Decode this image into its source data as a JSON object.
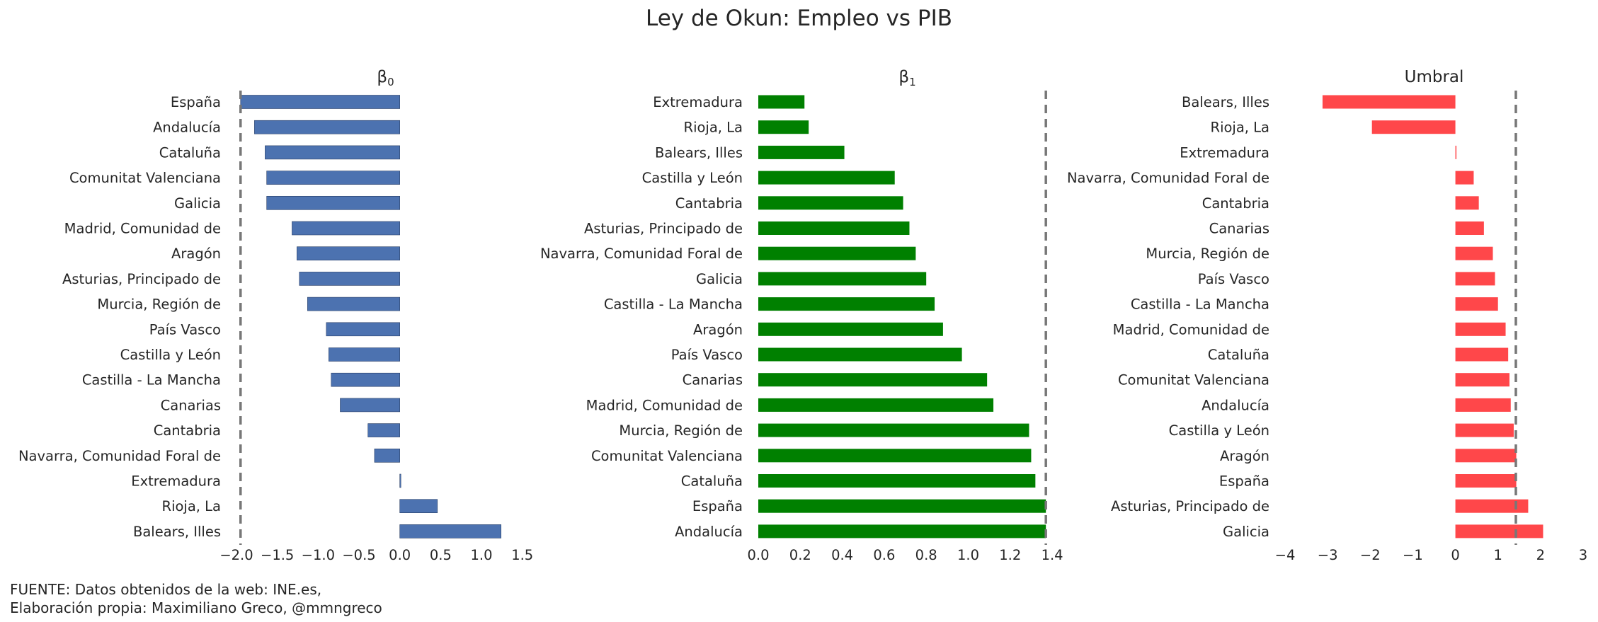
{
  "title": "Ley de Okun: Empleo vs PIB",
  "footer": {
    "line1": "FUENTE: Datos obtenidos de la web: INE.es,",
    "line2": "Elaboración propia: Maximiliano Greco, @mmngreco"
  },
  "chart_data": [
    {
      "type": "bar",
      "orientation": "horizontal",
      "title": "β0",
      "title_main": "β",
      "title_sub": "0",
      "color": "#4C72B0",
      "xlim": [
        -2.0,
        1.65
      ],
      "xticks": [
        -2.0,
        -1.5,
        -1.0,
        -0.5,
        0.0,
        0.5,
        1.0,
        1.5
      ],
      "xtick_labels": [
        "−2.0",
        "−1.5",
        "−1.0",
        "−0.5",
        "0.0",
        "0.5",
        "1.0",
        "1.5"
      ],
      "reference_line": -1.95,
      "categories": [
        "España",
        "Andalucía",
        "Cataluña",
        "Comunitat Valenciana",
        "Galicia",
        "Madrid, Comunidad de",
        "Aragón",
        "Asturias, Principado de",
        "Murcia, Región de",
        "País Vasco",
        "Castilla y León",
        "Castilla - La Mancha",
        "Canarias",
        "Cantabria",
        "Navarra, Comunidad Foral de",
        "Extremadura",
        "Rioja, La",
        "Balears, Illes"
      ],
      "values": [
        -1.95,
        -1.78,
        -1.65,
        -1.63,
        -1.63,
        -1.32,
        -1.26,
        -1.23,
        -1.13,
        -0.9,
        -0.87,
        -0.84,
        -0.73,
        -0.39,
        -0.31,
        0.0,
        0.46,
        1.24
      ]
    },
    {
      "type": "bar",
      "orientation": "horizontal",
      "title": "β1",
      "title_main": "β",
      "title_sub": "1",
      "color": "#008000",
      "xlim": [
        0.0,
        1.42
      ],
      "xticks": [
        0.0,
        0.2,
        0.4,
        0.6,
        0.8,
        1.0,
        1.2,
        1.4
      ],
      "xtick_labels": [
        "0.0",
        "0.2",
        "0.4",
        "0.6",
        "0.8",
        "1.0",
        "1.2",
        "1.4"
      ],
      "reference_line": 1.37,
      "categories": [
        "Extremadura",
        "Rioja, La",
        "Balears, Illes",
        "Castilla y León",
        "Cantabria",
        "Asturias, Principado de",
        "Navarra, Comunidad Foral de",
        "Galicia",
        "Castilla - La Mancha",
        "Aragón",
        "País Vasco",
        "Canarias",
        "Madrid, Comunidad de",
        "Murcia, Región de",
        "Comunitat Valenciana",
        "Cataluña",
        "España",
        "Andalucía"
      ],
      "values": [
        0.22,
        0.24,
        0.41,
        0.65,
        0.69,
        0.72,
        0.75,
        0.8,
        0.84,
        0.88,
        0.97,
        1.09,
        1.12,
        1.29,
        1.3,
        1.32,
        1.37,
        1.37
      ]
    },
    {
      "type": "bar",
      "orientation": "horizontal",
      "title": "Umbral",
      "title_main": "Umbral",
      "title_sub": "",
      "color": "#FF474A",
      "xlim": [
        -4.0,
        3.0
      ],
      "xticks": [
        -4,
        -3,
        -2,
        -1,
        0,
        1,
        2,
        3
      ],
      "xtick_labels": [
        "−4",
        "−3",
        "−2",
        "−1",
        "0",
        "1",
        "2",
        "3"
      ],
      "reference_line": 1.42,
      "categories": [
        "Balears, Illes",
        "Rioja, La",
        "Extremadura",
        "Navarra, Comunidad Foral de",
        "Cantabria",
        "Canarias",
        "Murcia, Región de",
        "País Vasco",
        "Castilla - La Mancha",
        "Madrid, Comunidad de",
        "Cataluña",
        "Comunitat Valenciana",
        "Andalucía",
        "Castilla y León",
        "Aragón",
        "España",
        "Asturias, Principado de",
        "Galicia"
      ],
      "values": [
        -3.12,
        -1.96,
        0.0,
        0.43,
        0.55,
        0.67,
        0.88,
        0.93,
        1.0,
        1.18,
        1.24,
        1.27,
        1.3,
        1.37,
        1.43,
        1.43,
        1.71,
        2.06
      ]
    }
  ]
}
